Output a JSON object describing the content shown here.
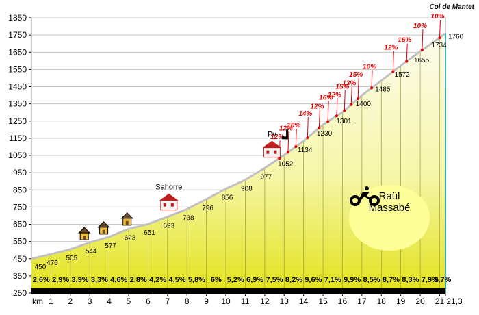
{
  "chart_data": {
    "type": "area",
    "title": "Col  de Mantet",
    "xlabel": "km",
    "ylim": [
      250,
      1850
    ],
    "y_ticks": [
      250,
      350,
      450,
      550,
      650,
      750,
      850,
      950,
      1050,
      1150,
      1250,
      1350,
      1450,
      1550,
      1650,
      1750,
      1850
    ],
    "x_tick_labels": [
      "km",
      "1",
      "2",
      "3",
      "4",
      "5",
      "6",
      "7",
      "8",
      "9",
      "10",
      "11",
      "12",
      "13",
      "14",
      "15",
      "16",
      "17",
      "18",
      "19",
      "20",
      "21",
      "21,3"
    ],
    "km": [
      0,
      1,
      2,
      3,
      4,
      5,
      6,
      7,
      8,
      9,
      10,
      11,
      12,
      13,
      14,
      15,
      16,
      17,
      18,
      19,
      20,
      21,
      21.3
    ],
    "elevation": [
      450,
      476,
      505,
      544,
      577,
      623,
      651,
      693,
      738,
      796,
      856,
      908,
      977,
      1052,
      1134,
      1230,
      1301,
      1400,
      1485,
      1572,
      1655,
      1734,
      1760
    ],
    "elevation_labels": [
      "450",
      "476",
      "505",
      "544",
      "577",
      "623",
      "651",
      "693",
      "738",
      "796",
      "856",
      "908",
      "977",
      "1052",
      "1134",
      "1230",
      "1301",
      "1400",
      "1485",
      "1572",
      "1655",
      "1734",
      "1760"
    ],
    "gradients": [
      "2,6%",
      "2,9%",
      "3,9%",
      "3,3%",
      "4,6%",
      "2,8%",
      "4,2%",
      "4,5%",
      "5,8%",
      "6%",
      "5,2%",
      "6,9%",
      "7,5%",
      "8,2%",
      "9,6%",
      "7,1%",
      "9,9%",
      "8,5%",
      "8,7%",
      "8,3%",
      "7,9%",
      "8,7%"
    ],
    "steep_sections": [
      {
        "label": "12%",
        "km": 12.75
      },
      {
        "label": "12%",
        "km": 13.2
      },
      {
        "label": "10%",
        "km": 13.6
      },
      {
        "label": "14%",
        "km": 14.2
      },
      {
        "label": "12%",
        "km": 14.8
      },
      {
        "label": "16%",
        "km": 15.25
      },
      {
        "label": "12%",
        "km": 15.7
      },
      {
        "label": "15%",
        "km": 16.1
      },
      {
        "label": "13%",
        "km": 16.45
      },
      {
        "label": "15%",
        "km": 16.8
      },
      {
        "label": "10%",
        "km": 17.5
      },
      {
        "label": "12%",
        "km": 18.6
      },
      {
        "label": "16%",
        "km": 19.3
      },
      {
        "label": "10%",
        "km": 20.1
      },
      {
        "label": "10%",
        "km": 21.0
      }
    ],
    "places": [
      {
        "label": "Sahorre",
        "km": 7
      },
      {
        "label": "Py",
        "km": 12.3
      }
    ],
    "houses_km": [
      3,
      4,
      5.2
    ],
    "colors": {
      "fill_top": "#fafad8",
      "fill_bottom": "#e4e418",
      "profile_line": "#bcbcbc",
      "steep_text": "#e00000",
      "bottom_band": "#000000",
      "rider_badge": "#ffff99",
      "grid": "#b0b0b0",
      "end_line": "#40b0b0"
    }
  },
  "rider": {
    "name_line1": "Raül",
    "name_line2": "Massabé",
    "icon": "cyclist-icon"
  }
}
